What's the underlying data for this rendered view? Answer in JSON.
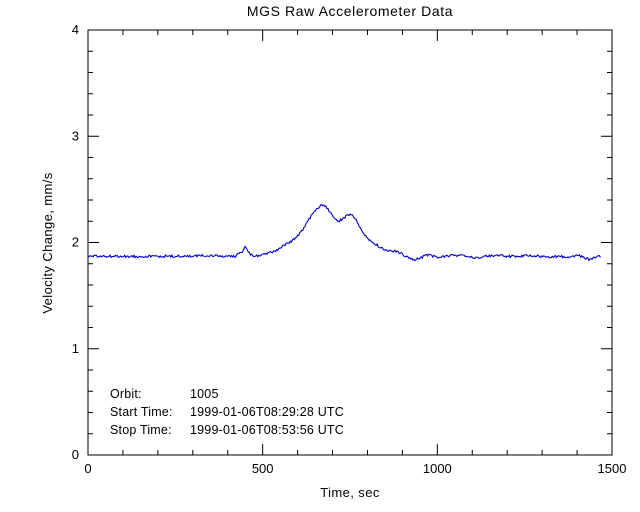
{
  "page": {
    "title": "MGS Raw Accelerometer Data"
  },
  "chart_data": {
    "type": "line",
    "title": "MGS Raw Accelerometer Data",
    "xlabel": "Time, sec",
    "ylabel": "Velocity Change, mm/s",
    "xlim": [
      0,
      1500
    ],
    "ylim": [
      0,
      4
    ],
    "x_ticks": [
      0,
      500,
      1000,
      1500
    ],
    "y_ticks": [
      0,
      1,
      2,
      3,
      4
    ],
    "x_minor_divisions": 5,
    "y_minor_divisions": 5,
    "grid": false,
    "legend_position": "none",
    "line_color": "#0000cc",
    "axis_color": "#000000",
    "background_color": "#ffffff",
    "noise_amplitude": 0.012,
    "series": [
      {
        "name": "Velocity Change",
        "points": [
          [
            0,
            1.87
          ],
          [
            60,
            1.87
          ],
          [
            120,
            1.87
          ],
          [
            180,
            1.87
          ],
          [
            240,
            1.87
          ],
          [
            300,
            1.87
          ],
          [
            340,
            1.88
          ],
          [
            380,
            1.87
          ],
          [
            420,
            1.87
          ],
          [
            438,
            1.9
          ],
          [
            450,
            1.96
          ],
          [
            458,
            1.92
          ],
          [
            468,
            1.88
          ],
          [
            480,
            1.87
          ],
          [
            495,
            1.88
          ],
          [
            510,
            1.89
          ],
          [
            525,
            1.91
          ],
          [
            540,
            1.93
          ],
          [
            555,
            1.96
          ],
          [
            570,
            1.99
          ],
          [
            585,
            2.02
          ],
          [
            600,
            2.06
          ],
          [
            615,
            2.12
          ],
          [
            630,
            2.2
          ],
          [
            645,
            2.28
          ],
          [
            660,
            2.33
          ],
          [
            670,
            2.36
          ],
          [
            680,
            2.34
          ],
          [
            690,
            2.3
          ],
          [
            700,
            2.25
          ],
          [
            710,
            2.21
          ],
          [
            720,
            2.2
          ],
          [
            730,
            2.23
          ],
          [
            742,
            2.25
          ],
          [
            755,
            2.26
          ],
          [
            765,
            2.23
          ],
          [
            775,
            2.16
          ],
          [
            788,
            2.09
          ],
          [
            800,
            2.04
          ],
          [
            815,
            2.0
          ],
          [
            830,
            1.97
          ],
          [
            845,
            1.94
          ],
          [
            860,
            1.92
          ],
          [
            875,
            1.92
          ],
          [
            890,
            1.91
          ],
          [
            905,
            1.88
          ],
          [
            920,
            1.86
          ],
          [
            935,
            1.84
          ],
          [
            950,
            1.85
          ],
          [
            965,
            1.88
          ],
          [
            980,
            1.88
          ],
          [
            1000,
            1.86
          ],
          [
            1020,
            1.87
          ],
          [
            1050,
            1.88
          ],
          [
            1080,
            1.87
          ],
          [
            1110,
            1.86
          ],
          [
            1140,
            1.87
          ],
          [
            1170,
            1.88
          ],
          [
            1200,
            1.87
          ],
          [
            1230,
            1.87
          ],
          [
            1260,
            1.88
          ],
          [
            1290,
            1.87
          ],
          [
            1320,
            1.86
          ],
          [
            1350,
            1.87
          ],
          [
            1380,
            1.86
          ],
          [
            1405,
            1.88
          ],
          [
            1420,
            1.86
          ],
          [
            1435,
            1.84
          ],
          [
            1448,
            1.86
          ],
          [
            1460,
            1.87
          ],
          [
            1468,
            1.87
          ]
        ]
      }
    ],
    "annotations": {
      "rows": [
        {
          "label": "Orbit:",
          "value": "1005"
        },
        {
          "label": "Start Time:",
          "value": "1999-01-06T08:29:28 UTC"
        },
        {
          "label": "Stop Time:",
          "value": "1999-01-06T08:53:56 UTC"
        }
      ]
    }
  }
}
